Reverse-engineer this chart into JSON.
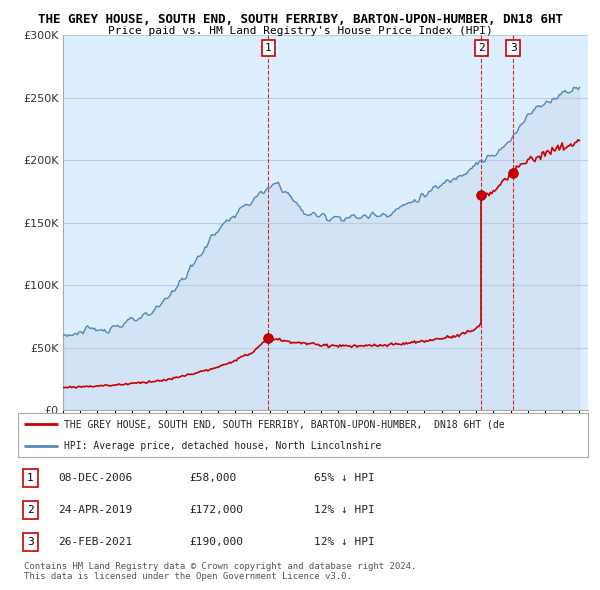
{
  "title": "THE GREY HOUSE, SOUTH END, SOUTH FERRIBY, BARTON-UPON-HUMBER, DN18 6HT",
  "subtitle": "Price paid vs. HM Land Registry's House Price Index (HPI)",
  "ylim": [
    0,
    300000
  ],
  "yticks": [
    0,
    50000,
    100000,
    150000,
    200000,
    250000,
    300000
  ],
  "hpi_color": "#5588bb",
  "hpi_fill_color": "#ccddef",
  "price_color": "#cc0000",
  "background_color": "#ffffff",
  "plot_bg_color": "#ddeeff",
  "grid_color": "#bbccdd",
  "sale_dates": [
    2006.93,
    2019.31,
    2021.15
  ],
  "sale_prices": [
    58000,
    172000,
    190000
  ],
  "sale_labels": [
    "1",
    "2",
    "3"
  ],
  "dashed_vline_color": "#cc0000",
  "transaction_info": [
    {
      "label": "1",
      "date": "08-DEC-2006",
      "price": "£58,000",
      "hpi": "65% ↓ HPI"
    },
    {
      "label": "2",
      "date": "24-APR-2019",
      "price": "£172,000",
      "hpi": "12% ↓ HPI"
    },
    {
      "label": "3",
      "date": "26-FEB-2021",
      "price": "£190,000",
      "hpi": "12% ↓ HPI"
    }
  ],
  "legend_line1": "THE GREY HOUSE, SOUTH END, SOUTH FERRIBY, BARTON-UPON-HUMBER,  DN18 6HT (de",
  "legend_line2": "HPI: Average price, detached house, North Lincolnshire",
  "footnote": "Contains HM Land Registry data © Crown copyright and database right 2024.\nThis data is licensed under the Open Government Licence v3.0."
}
